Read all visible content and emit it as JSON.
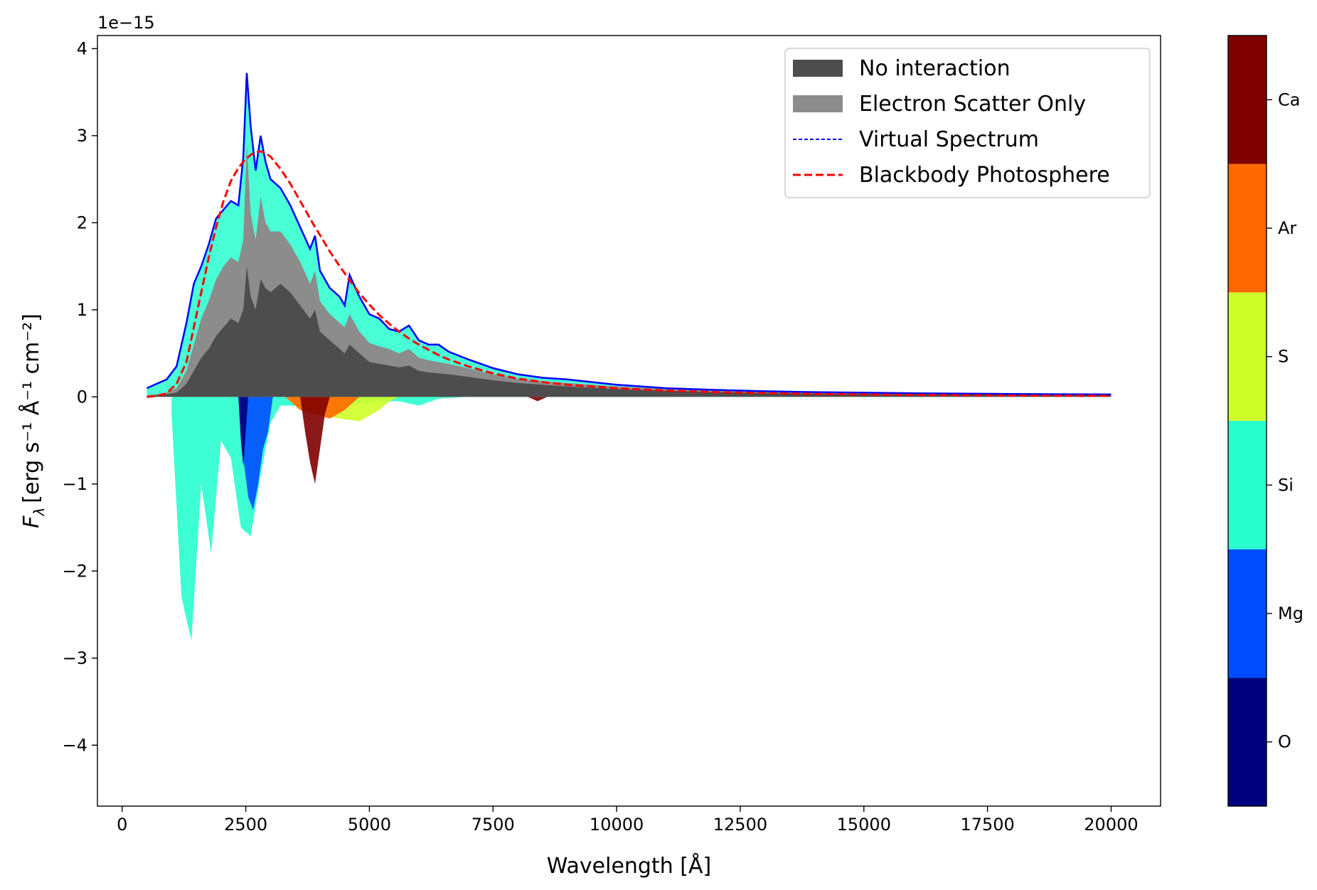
{
  "chart_data": {
    "type": "area",
    "xlabel": "Wavelength [Å]",
    "ylabel_main": "F",
    "ylabel_sub": "λ",
    "ylabel_units": "[erg s⁻¹ Å⁻¹ cm⁻²]",
    "offset_label": "1e−15",
    "xlim": [
      -500,
      21000
    ],
    "ylim": [
      -4.7,
      4.15
    ],
    "y_scale_factor": 1e-15,
    "xticks": [
      0,
      2500,
      5000,
      7500,
      10000,
      12500,
      15000,
      17500,
      20000
    ],
    "xtick_labels": [
      "0",
      "2500",
      "5000",
      "7500",
      "10000",
      "12500",
      "15000",
      "17500",
      "20000"
    ],
    "yticks": [
      -4,
      -3,
      -2,
      -1,
      0,
      1,
      2,
      3,
      4
    ],
    "ytick_labels": [
      "−4",
      "−3",
      "−2",
      "−1",
      "0",
      "1",
      "2",
      "3",
      "4"
    ],
    "grid": false,
    "legend_position": "top-right",
    "legend": [
      {
        "label": "No interaction",
        "kind": "patch",
        "color": "#4d4d4d"
      },
      {
        "label": "Electron Scatter Only",
        "kind": "patch",
        "color": "#8c8c8c"
      },
      {
        "label": "Virtual Spectrum",
        "kind": "line",
        "color": "#0000ff",
        "dash": "dotted"
      },
      {
        "label": "Blackbody Photosphere",
        "kind": "line",
        "color": "#ff0000",
        "dash": "dashed"
      }
    ],
    "colorbar": {
      "labels": [
        "O",
        "Mg",
        "Si",
        "S",
        "Ar",
        "Ca"
      ],
      "colors": [
        "#00007f",
        "#004cff",
        "#29ffce",
        "#ceff29",
        "#ff6800",
        "#7f0000"
      ]
    },
    "x": [
      500,
      700,
      900,
      1100,
      1300,
      1450,
      1600,
      1750,
      1900,
      2050,
      2200,
      2350,
      2450,
      2520,
      2600,
      2700,
      2800,
      2900,
      3000,
      3200,
      3400,
      3600,
      3800,
      3900,
      4000,
      4200,
      4400,
      4500,
      4600,
      4800,
      5000,
      5200,
      5400,
      5600,
      5800,
      6000,
      6200,
      6400,
      6600,
      7000,
      7500,
      8000,
      8500,
      9000,
      10000,
      11000,
      12000,
      13000,
      14000,
      15000,
      16000,
      17000,
      18000,
      19000,
      20000
    ],
    "series": [
      {
        "name": "Virtual Spectrum",
        "values": [
          0.1,
          0.15,
          0.2,
          0.35,
          0.85,
          1.3,
          1.5,
          1.75,
          2.05,
          2.15,
          2.25,
          2.2,
          2.75,
          3.72,
          3.1,
          2.6,
          3.0,
          2.7,
          2.5,
          2.4,
          2.2,
          1.95,
          1.7,
          1.85,
          1.45,
          1.25,
          1.15,
          1.05,
          1.4,
          1.15,
          0.95,
          0.9,
          0.78,
          0.75,
          0.82,
          0.65,
          0.6,
          0.6,
          0.52,
          0.43,
          0.33,
          0.26,
          0.22,
          0.2,
          0.14,
          0.1,
          0.08,
          0.065,
          0.055,
          0.048,
          0.042,
          0.038,
          0.034,
          0.03,
          0.028
        ]
      },
      {
        "name": "Blackbody Photosphere",
        "values": [
          0.0,
          0.01,
          0.04,
          0.15,
          0.4,
          0.8,
          1.2,
          1.6,
          1.95,
          2.25,
          2.48,
          2.63,
          2.7,
          2.74,
          2.78,
          2.81,
          2.82,
          2.8,
          2.76,
          2.62,
          2.45,
          2.25,
          2.05,
          1.95,
          1.86,
          1.67,
          1.5,
          1.42,
          1.34,
          1.19,
          1.06,
          0.94,
          0.84,
          0.75,
          0.67,
          0.6,
          0.54,
          0.48,
          0.43,
          0.35,
          0.27,
          0.21,
          0.17,
          0.14,
          0.1,
          0.072,
          0.055,
          0.043,
          0.034,
          0.028,
          0.023,
          0.019,
          0.016,
          0.014,
          0.012
        ]
      },
      {
        "name": "Electron Scatter Only",
        "values": [
          0.02,
          0.03,
          0.05,
          0.1,
          0.3,
          0.6,
          0.9,
          1.1,
          1.35,
          1.5,
          1.6,
          1.55,
          1.8,
          2.9,
          2.1,
          1.8,
          2.3,
          2.0,
          1.9,
          1.9,
          1.75,
          1.55,
          1.3,
          1.45,
          1.1,
          0.95,
          0.85,
          0.8,
          0.95,
          0.75,
          0.62,
          0.58,
          0.55,
          0.5,
          0.55,
          0.45,
          0.42,
          0.4,
          0.38,
          0.33,
          0.26,
          0.21,
          0.18,
          0.16,
          0.12,
          0.09,
          0.07,
          0.055,
          0.045,
          0.04,
          0.035,
          0.031,
          0.028,
          0.025,
          0.022
        ]
      },
      {
        "name": "No interaction",
        "values": [
          0.01,
          0.02,
          0.03,
          0.05,
          0.15,
          0.3,
          0.45,
          0.55,
          0.7,
          0.8,
          0.9,
          0.85,
          1.0,
          1.5,
          1.15,
          1.0,
          1.35,
          1.25,
          1.2,
          1.3,
          1.2,
          1.05,
          0.9,
          1.0,
          0.75,
          0.65,
          0.55,
          0.5,
          0.6,
          0.5,
          0.4,
          0.38,
          0.36,
          0.34,
          0.36,
          0.3,
          0.28,
          0.27,
          0.26,
          0.23,
          0.19,
          0.16,
          0.14,
          0.12,
          0.09,
          0.07,
          0.055,
          0.045,
          0.038,
          0.033,
          0.029,
          0.026,
          0.023,
          0.021,
          0.019
        ]
      }
    ],
    "element_contributions": [
      {
        "element": "Si",
        "color": "#29ffce",
        "x": [
          1000,
          1200,
          1400,
          1600,
          1800,
          2000,
          2200,
          2400,
          2600,
          2800,
          3000,
          3200,
          3600,
          4000,
          4400,
          4800,
          5200,
          5600,
          6000,
          6400,
          7000
        ],
        "positive": [
          0,
          0.02,
          0.05,
          0.08,
          0.15,
          0.05,
          0.03,
          0.1,
          0.5,
          0.1,
          0.05,
          0.03,
          0.1,
          0.2,
          0.3,
          0.25,
          0.2,
          0.1,
          0.08,
          0.03,
          0
        ],
        "negative": [
          -0.2,
          -2.3,
          -2.8,
          -1.0,
          -1.8,
          -0.5,
          -0.7,
          -1.5,
          -1.6,
          -0.9,
          -0.3,
          -0.1,
          -0.1,
          -0.15,
          -0.1,
          -0.08,
          -0.05,
          -0.05,
          -0.1,
          -0.02,
          0
        ]
      },
      {
        "element": "Mg",
        "color": "#004cff",
        "x": [
          2350,
          2450,
          2550,
          2650,
          2750,
          2850,
          2950,
          3050
        ],
        "positive": [
          0,
          0.02,
          0.05,
          0.02,
          0,
          0,
          0,
          0
        ],
        "negative": [
          0,
          -0.7,
          -1.15,
          -1.3,
          -1.0,
          -0.6,
          -0.4,
          0
        ]
      },
      {
        "element": "O",
        "color": "#00007f",
        "x": [
          2350,
          2400,
          2450,
          2500,
          2550
        ],
        "positive": [
          0,
          0,
          0,
          0,
          0
        ],
        "negative": [
          0,
          -0.5,
          -0.8,
          -0.4,
          0
        ]
      },
      {
        "element": "S",
        "color": "#ceff29",
        "x": [
          3300,
          3600,
          4000,
          4400,
          4800,
          5200,
          5400,
          5600,
          6000
        ],
        "positive": [
          0,
          0.05,
          0.1,
          0.15,
          0.3,
          0.15,
          0.05,
          0.02,
          0
        ],
        "negative": [
          0,
          -0.15,
          -0.2,
          -0.25,
          -0.28,
          -0.15,
          -0.05,
          0,
          0
        ]
      },
      {
        "element": "Ar",
        "color": "#ff6800",
        "x": [
          3300,
          3600,
          3900,
          4200,
          4500,
          4800
        ],
        "positive": [
          0,
          0.02,
          0.05,
          0.05,
          0.02,
          0
        ],
        "negative": [
          0,
          -0.15,
          -0.2,
          -0.25,
          -0.15,
          0
        ]
      },
      {
        "element": "Ca",
        "color": "#7f0000",
        "x": [
          3600,
          3700,
          3800,
          3900,
          4000,
          4100,
          4200,
          8200,
          8400,
          8600
        ],
        "positive": [
          0,
          0.1,
          0.6,
          0.9,
          0.3,
          0.05,
          0,
          0,
          0.02,
          0
        ],
        "negative": [
          0,
          -0.4,
          -0.75,
          -1.0,
          -0.6,
          -0.2,
          0,
          0,
          -0.05,
          0
        ]
      }
    ]
  }
}
